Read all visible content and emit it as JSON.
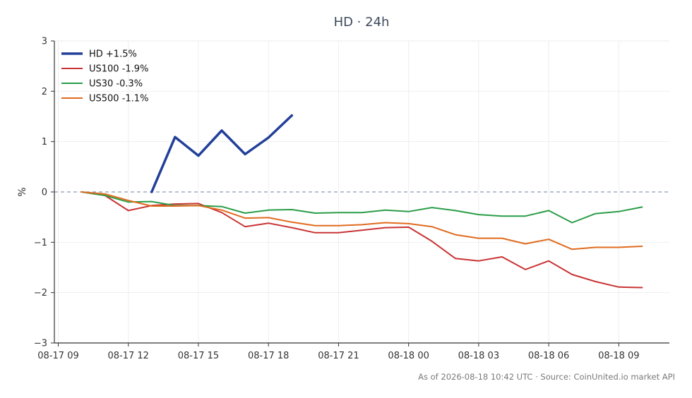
{
  "chart_data": {
    "type": "line",
    "title": "HD · 24h",
    "xlabel": "",
    "ylabel": "%",
    "ylim": [
      -3,
      3
    ],
    "xlim": [
      "2026-08-17 08:50",
      "2026-08-18 11:10"
    ],
    "grid": true,
    "legend": "top-left",
    "zero_line": true,
    "xticks": [
      {
        "label": "08-17 09",
        "t": "2026-08-17 09:00"
      },
      {
        "label": "08-17 12",
        "t": "2026-08-17 12:00"
      },
      {
        "label": "08-17 15",
        "t": "2026-08-17 15:00"
      },
      {
        "label": "08-17 18",
        "t": "2026-08-17 18:00"
      },
      {
        "label": "08-17 21",
        "t": "2026-08-17 21:00"
      },
      {
        "label": "08-18 00",
        "t": "2026-08-18 00:00"
      },
      {
        "label": "08-18 03",
        "t": "2026-08-18 03:00"
      },
      {
        "label": "08-18 06",
        "t": "2026-08-18 06:00"
      },
      {
        "label": "08-18 09",
        "t": "2026-08-18 09:00"
      }
    ],
    "yticks": [
      {
        "label": "3",
        "v": 3
      },
      {
        "label": "2",
        "v": 2
      },
      {
        "label": "1",
        "v": 1
      },
      {
        "label": "0",
        "v": 0
      },
      {
        "label": "−1",
        "v": -1
      },
      {
        "label": "−2",
        "v": -2
      },
      {
        "label": "−3",
        "v": -3
      }
    ],
    "series": [
      {
        "name": "HD +1.5%",
        "color": "#223f99",
        "width": 3.5,
        "x": [
          "2026-08-17 13:00",
          "2026-08-17 14:00",
          "2026-08-17 15:00",
          "2026-08-17 16:00",
          "2026-08-17 17:00",
          "2026-08-17 18:00",
          "2026-08-17 19:00"
        ],
        "y": [
          0.0,
          1.09,
          0.72,
          1.22,
          0.75,
          1.08,
          1.52
        ]
      },
      {
        "name": "US100 -1.9%",
        "color": "#c93434",
        "width": 2,
        "x": [
          "2026-08-17 10:00",
          "2026-08-17 11:00",
          "2026-08-17 12:00",
          "2026-08-17 13:00",
          "2026-08-17 14:00",
          "2026-08-17 15:00",
          "2026-08-17 16:00",
          "2026-08-17 17:00",
          "2026-08-17 18:00",
          "2026-08-17 19:00",
          "2026-08-17 20:00",
          "2026-08-17 21:00",
          "2026-08-17 22:00",
          "2026-08-17 23:00",
          "2026-08-18 00:00",
          "2026-08-18 01:00",
          "2026-08-18 02:00",
          "2026-08-18 03:00",
          "2026-08-18 04:00",
          "2026-08-18 05:00",
          "2026-08-18 06:00",
          "2026-08-18 07:00",
          "2026-08-18 08:00",
          "2026-08-18 09:00",
          "2026-08-18 10:00"
        ],
        "y": [
          0.0,
          -0.07,
          -0.37,
          -0.27,
          -0.24,
          -0.23,
          -0.41,
          -0.69,
          -0.62,
          -0.71,
          -0.81,
          -0.81,
          -0.76,
          -0.71,
          -0.7,
          -0.98,
          -1.32,
          -1.37,
          -1.29,
          -1.54,
          -1.37,
          -1.64,
          -1.78,
          -1.89,
          -1.9
        ]
      },
      {
        "name": "US30 -0.3%",
        "color": "#2a9d48",
        "width": 2,
        "x": [
          "2026-08-17 10:00",
          "2026-08-17 11:00",
          "2026-08-17 12:00",
          "2026-08-17 13:00",
          "2026-08-17 14:00",
          "2026-08-17 15:00",
          "2026-08-17 16:00",
          "2026-08-17 17:00",
          "2026-08-17 18:00",
          "2026-08-17 19:00",
          "2026-08-17 20:00",
          "2026-08-17 21:00",
          "2026-08-17 22:00",
          "2026-08-17 23:00",
          "2026-08-18 00:00",
          "2026-08-18 01:00",
          "2026-08-18 02:00",
          "2026-08-18 03:00",
          "2026-08-18 04:00",
          "2026-08-18 05:00",
          "2026-08-18 06:00",
          "2026-08-18 07:00",
          "2026-08-18 08:00",
          "2026-08-18 09:00",
          "2026-08-18 10:00"
        ],
        "y": [
          0.0,
          -0.07,
          -0.2,
          -0.19,
          -0.27,
          -0.27,
          -0.29,
          -0.42,
          -0.36,
          -0.35,
          -0.42,
          -0.41,
          -0.41,
          -0.36,
          -0.39,
          -0.31,
          -0.37,
          -0.45,
          -0.48,
          -0.48,
          -0.37,
          -0.61,
          -0.43,
          -0.39,
          -0.3
        ]
      },
      {
        "name": "US500 -1.1%",
        "color": "#e06b1f",
        "width": 2,
        "x": [
          "2026-08-17 10:00",
          "2026-08-17 11:00",
          "2026-08-17 12:00",
          "2026-08-17 13:00",
          "2026-08-17 14:00",
          "2026-08-17 15:00",
          "2026-08-17 16:00",
          "2026-08-17 17:00",
          "2026-08-17 18:00",
          "2026-08-17 19:00",
          "2026-08-17 20:00",
          "2026-08-17 21:00",
          "2026-08-17 22:00",
          "2026-08-17 23:00",
          "2026-08-18 00:00",
          "2026-08-18 01:00",
          "2026-08-18 02:00",
          "2026-08-18 03:00",
          "2026-08-18 04:00",
          "2026-08-18 05:00",
          "2026-08-18 06:00",
          "2026-08-18 07:00",
          "2026-08-18 08:00",
          "2026-08-18 09:00",
          "2026-08-18 10:00"
        ],
        "y": [
          0.0,
          -0.04,
          -0.17,
          -0.28,
          -0.28,
          -0.27,
          -0.36,
          -0.52,
          -0.51,
          -0.6,
          -0.67,
          -0.67,
          -0.65,
          -0.61,
          -0.63,
          -0.69,
          -0.85,
          -0.92,
          -0.92,
          -1.03,
          -0.94,
          -1.14,
          -1.1,
          -1.1,
          -1.08
        ]
      }
    ]
  },
  "footer": {
    "note": "As of 2026-08-18 10:42 UTC · Source: CoinUnited.io market API"
  }
}
